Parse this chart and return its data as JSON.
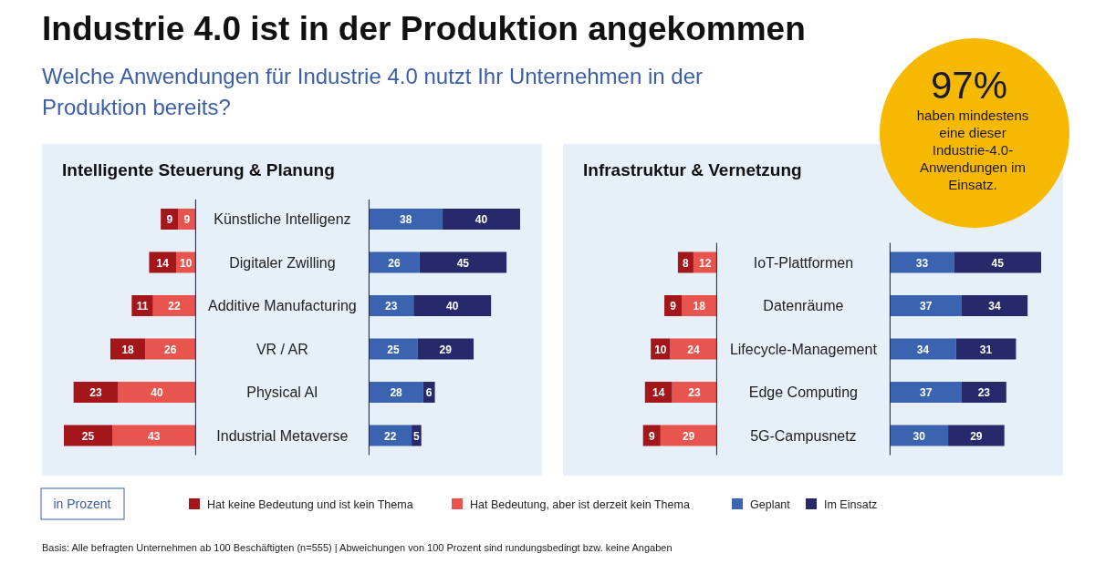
{
  "chart_data": [
    {
      "type": "other",
      "title": "Industrie 4.0 ist in der Produktion angekommen",
      "subtitle": "Welche Anwendungen für Industrie 4.0 nutzt Ihr Unternehmen in der Produktion bereits?",
      "annotations": [
        "97%",
        "haben mindestens eine dieser Industrie-4.0-Anwendungen im Einsatz.",
        "in Prozent",
        "Basis: Alle befragten Unternehmen ab 100 Beschäftigten (n=555) | Abweichungen von 100 Prozent sind rundungsbedingt bzw. keine Angaben"
      ]
    },
    {
      "type": "bar",
      "orientation": "horizontal",
      "stacked": true,
      "title": "Intelligente Steuerung & Planung",
      "legend": "bottom",
      "data_labels": true,
      "categories": [
        "Künstliche Intelligenz",
        "Digitaler Zwilling",
        "Additive Manufacturing",
        "VR / AR",
        "Physical AI",
        "Industrial Metaverse"
      ],
      "series": [
        {
          "name": "Hat Bedeutung, aber ist derzeit kein Thema",
          "color": "#e8544e",
          "values": [
            9,
            10,
            22,
            26,
            40,
            43
          ]
        },
        {
          "name": "Hat keine Bedeutung und ist kein Thema",
          "color": "#a3161a",
          "values": [
            9,
            14,
            11,
            18,
            23,
            25
          ]
        }
      ]
    },
    {
      "type": "bar",
      "orientation": "horizontal",
      "stacked": true,
      "legend": "bottom",
      "data_labels": true,
      "categories": [
        null,
        null,
        null,
        null,
        null,
        null
      ],
      "series": [
        {
          "name": "Geplant",
          "color": "#3a63b0",
          "values": [
            38,
            26,
            23,
            25,
            28,
            22
          ]
        },
        {
          "name": "Im Einsatz",
          "color": "#27296b",
          "values": [
            40,
            45,
            40,
            29,
            6,
            5
          ]
        }
      ]
    },
    {
      "type": "bar",
      "orientation": "horizontal",
      "stacked": true,
      "title": "Infrastruktur & Vernetzung",
      "data_labels": true,
      "categories": [
        "IoT-Plattformen",
        "Datenräume",
        "Lifecycle-Management",
        "Edge Computing",
        "5G-Campusnetz"
      ],
      "series": [
        {
          "color": "#e8544e",
          "values": [
            12,
            18,
            24,
            23,
            29
          ]
        },
        {
          "color": "#a3161a",
          "values": [
            8,
            9,
            10,
            14,
            9
          ]
        }
      ]
    },
    {
      "type": "bar",
      "orientation": "horizontal",
      "stacked": true,
      "data_labels": true,
      "categories": [
        null,
        null,
        null,
        null,
        null
      ],
      "series": [
        {
          "color": "#3a63b0",
          "values": [
            33,
            37,
            34,
            37,
            30
          ]
        },
        {
          "color": "#27296b",
          "values": [
            45,
            34,
            31,
            23,
            29
          ]
        }
      ]
    }
  ]
}
